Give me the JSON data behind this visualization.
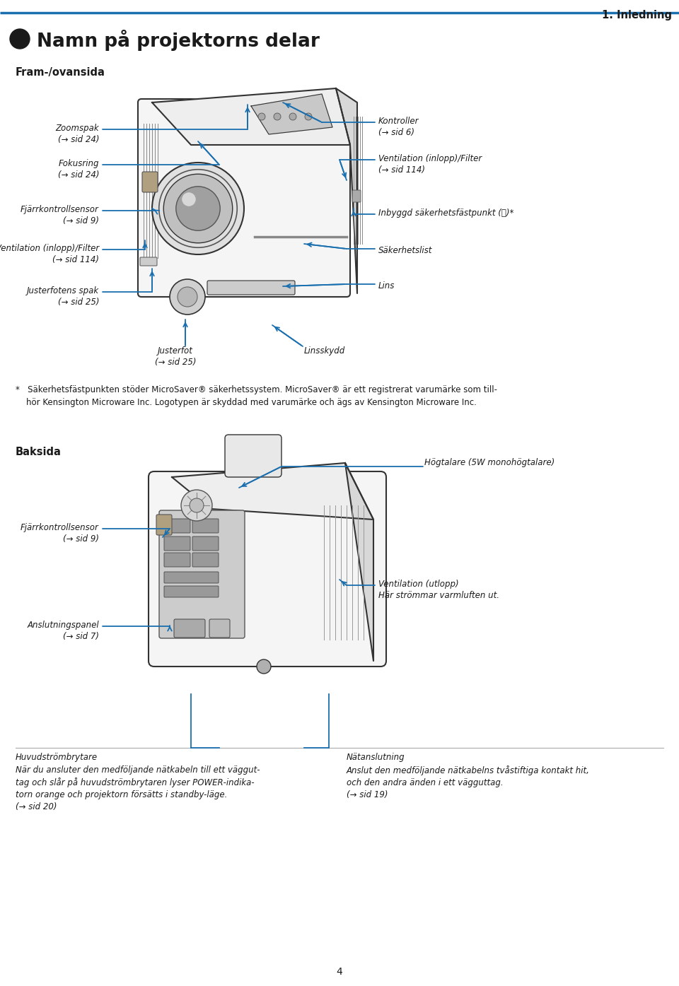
{
  "page_header_right": "1. Inledning",
  "page_title": "Namn på projektorns delar",
  "section1_title": "Fram-/ovansida",
  "section2_title": "Baksida",
  "header_line_color": "#1a6faf",
  "blue": "#1a6faf",
  "black": "#1a1a1a",
  "gray_body": "#f0f0f0",
  "gray_dark": "#888888",
  "gray_mid": "#bbbbbb",
  "gray_light": "#dddddd",
  "page_number": "4",
  "bg": "#ffffff"
}
